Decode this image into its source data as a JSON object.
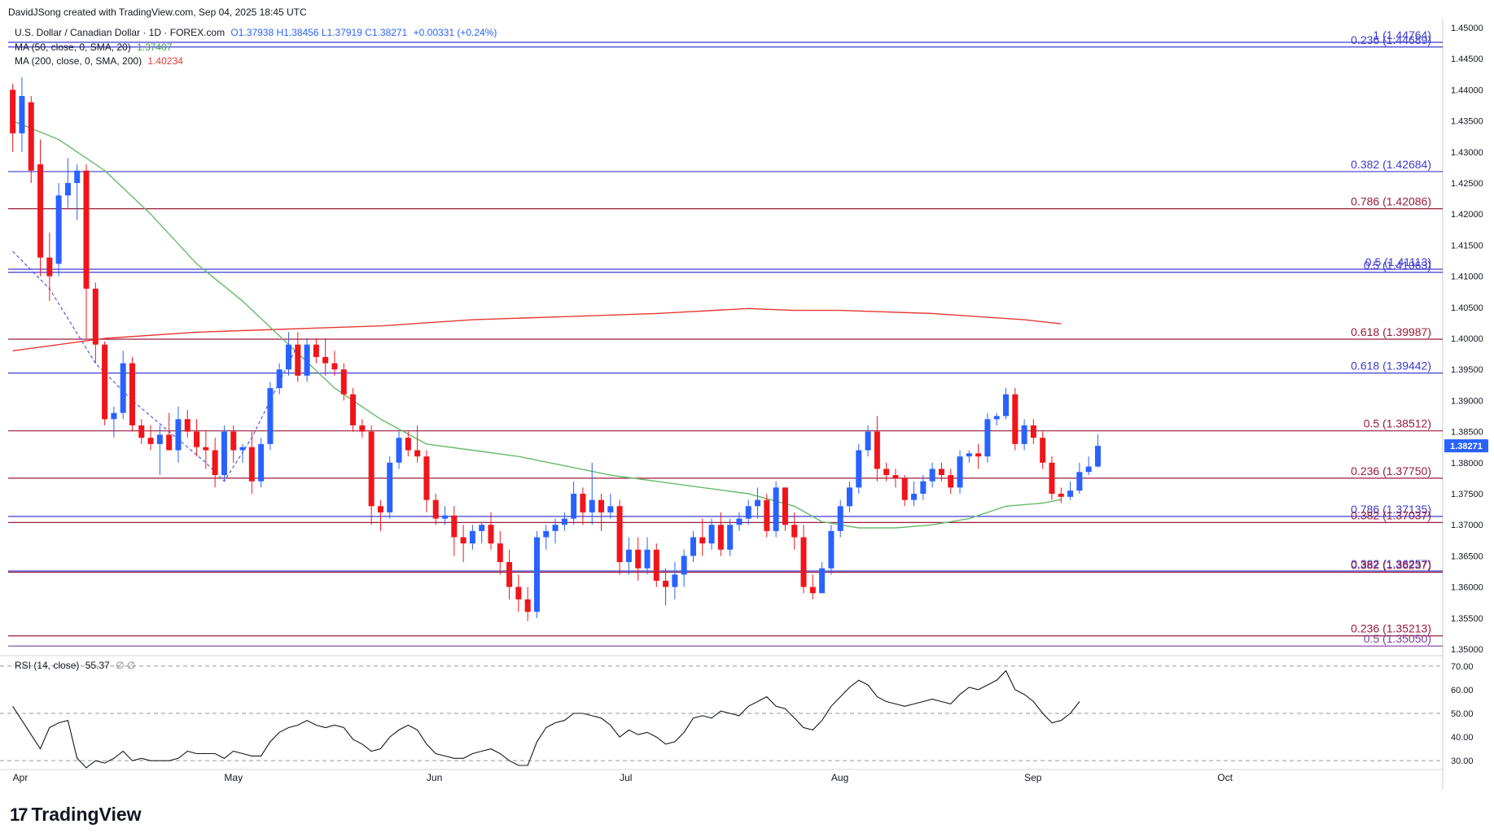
{
  "header": {
    "credit": "DavidJSong created with TradingView.com, Sep 04, 2025 18:45 UTC"
  },
  "legend": {
    "symbol": "U.S. Dollar / Canadian Dollar · 1D · FOREX.com",
    "ohlc": "O1.37938 H1.38456 L1.37919 C1.38271",
    "change": "+0.00331 (+0.24%)",
    "ma50_label": "MA (50, close, 0, SMA, 20)",
    "ma50_value": "1.37407",
    "ma200_label": "MA (200, close, 0, SMA, 200)",
    "ma200_value": "1.40234",
    "rsi_label": "RSI (14, close)",
    "rsi_value": "55.37",
    "rsi_extra": "∅ ∅"
  },
  "branding": {
    "logo_text": "TradingView",
    "logo_mark": "17"
  },
  "colors": {
    "up": "#2962ff",
    "down": "#f0151b",
    "ma50": "#66bb6a",
    "ma200": "#e53935",
    "fib_blue": "#3d3bd0",
    "fib_red": "#9a1b3a",
    "axis_text": "#131722"
  },
  "chart_data": [
    {
      "type": "candlestick",
      "title": "U.S. Dollar / Canadian Dollar · 1D · FOREX.com",
      "ylim": [
        1.35,
        1.45
      ],
      "y_ticks": [
        "1.35000",
        "1.35500",
        "1.36000",
        "1.36500",
        "1.37000",
        "1.37500",
        "1.38000",
        "1.38500",
        "1.39000",
        "1.39500",
        "1.40000",
        "1.40500",
        "1.41000",
        "1.41500",
        "1.42000",
        "1.42500",
        "1.43000",
        "1.43500",
        "1.44000",
        "1.44500",
        "1.45000"
      ],
      "x_month_labels": [
        {
          "label": "Apr",
          "index": 0
        },
        {
          "label": "May",
          "index": 23
        },
        {
          "label": "Jun",
          "index": 45
        },
        {
          "label": "Jul",
          "index": 66
        },
        {
          "label": "Aug",
          "index": 89
        },
        {
          "label": "Sep",
          "index": 110
        },
        {
          "label": "Oct",
          "index": 131
        }
      ],
      "slots": 156,
      "candles": [
        [
          1.44,
          1.441,
          1.43,
          1.433
        ],
        [
          1.433,
          1.442,
          1.43,
          1.439
        ],
        [
          1.438,
          1.439,
          1.425,
          1.427
        ],
        [
          1.428,
          1.432,
          1.41,
          1.413
        ],
        [
          1.413,
          1.417,
          1.406,
          1.41
        ],
        [
          1.412,
          1.425,
          1.41,
          1.423
        ],
        [
          1.423,
          1.429,
          1.421,
          1.425
        ],
        [
          1.425,
          1.428,
          1.419,
          1.427
        ],
        [
          1.427,
          1.428,
          1.4,
          1.408
        ],
        [
          1.408,
          1.409,
          1.396,
          1.399
        ],
        [
          1.399,
          1.3995,
          1.386,
          1.387
        ],
        [
          1.387,
          1.389,
          1.384,
          1.388
        ],
        [
          1.388,
          1.398,
          1.387,
          1.396
        ],
        [
          1.396,
          1.397,
          1.385,
          1.386
        ],
        [
          1.386,
          1.387,
          1.383,
          1.384
        ],
        [
          1.384,
          1.386,
          1.382,
          1.383
        ],
        [
          1.383,
          1.386,
          1.378,
          1.3845
        ],
        [
          1.3845,
          1.388,
          1.382,
          1.382
        ],
        [
          1.382,
          1.389,
          1.38,
          1.387
        ],
        [
          1.387,
          1.3885,
          1.384,
          1.385
        ],
        [
          1.385,
          1.387,
          1.381,
          1.3825
        ],
        [
          1.3825,
          1.385,
          1.379,
          1.382
        ],
        [
          1.382,
          1.384,
          1.376,
          1.378
        ],
        [
          1.378,
          1.386,
          1.377,
          1.385
        ],
        [
          1.385,
          1.386,
          1.38,
          1.382
        ],
        [
          1.382,
          1.383,
          1.38,
          1.3825
        ],
        [
          1.3825,
          1.385,
          1.375,
          1.377
        ],
        [
          1.377,
          1.384,
          1.376,
          1.383
        ],
        [
          1.383,
          1.393,
          1.382,
          1.392
        ],
        [
          1.392,
          1.396,
          1.391,
          1.395
        ],
        [
          1.395,
          1.401,
          1.394,
          1.399
        ],
        [
          1.399,
          1.401,
          1.393,
          1.394
        ],
        [
          1.394,
          1.4,
          1.393,
          1.399
        ],
        [
          1.399,
          1.4,
          1.396,
          1.397
        ],
        [
          1.397,
          1.4,
          1.394,
          1.396
        ],
        [
          1.396,
          1.398,
          1.394,
          1.395
        ],
        [
          1.395,
          1.396,
          1.39,
          1.391
        ],
        [
          1.391,
          1.392,
          1.385,
          1.386
        ],
        [
          1.386,
          1.387,
          1.384,
          1.385
        ],
        [
          1.385,
          1.386,
          1.37,
          1.373
        ],
        [
          1.373,
          1.374,
          1.369,
          1.372
        ],
        [
          1.372,
          1.381,
          1.371,
          1.38
        ],
        [
          1.38,
          1.385,
          1.379,
          1.384
        ],
        [
          1.384,
          1.385,
          1.381,
          1.382
        ],
        [
          1.382,
          1.386,
          1.38,
          1.381
        ],
        [
          1.381,
          1.382,
          1.372,
          1.374
        ],
        [
          1.374,
          1.375,
          1.37,
          1.371
        ],
        [
          1.371,
          1.373,
          1.37,
          1.3715
        ],
        [
          1.3715,
          1.373,
          1.365,
          1.368
        ],
        [
          1.368,
          1.37,
          1.364,
          1.367
        ],
        [
          1.367,
          1.37,
          1.366,
          1.369
        ],
        [
          1.369,
          1.3705,
          1.367,
          1.37
        ],
        [
          1.37,
          1.372,
          1.366,
          1.367
        ],
        [
          1.367,
          1.369,
          1.362,
          1.364
        ],
        [
          1.364,
          1.366,
          1.358,
          1.36
        ],
        [
          1.36,
          1.362,
          1.356,
          1.358
        ],
        [
          1.358,
          1.36,
          1.3545,
          1.356
        ],
        [
          1.356,
          1.369,
          1.355,
          1.368
        ],
        [
          1.368,
          1.37,
          1.366,
          1.369
        ],
        [
          1.369,
          1.371,
          1.367,
          1.37
        ],
        [
          1.37,
          1.372,
          1.369,
          1.371
        ],
        [
          1.371,
          1.377,
          1.37,
          1.375
        ],
        [
          1.375,
          1.376,
          1.37,
          1.372
        ],
        [
          1.372,
          1.38,
          1.37,
          1.374
        ],
        [
          1.374,
          1.375,
          1.369,
          1.372
        ],
        [
          1.372,
          1.375,
          1.371,
          1.373
        ],
        [
          1.373,
          1.374,
          1.362,
          1.364
        ],
        [
          1.364,
          1.368,
          1.362,
          1.366
        ],
        [
          1.366,
          1.368,
          1.361,
          1.363
        ],
        [
          1.363,
          1.368,
          1.362,
          1.366
        ],
        [
          1.366,
          1.367,
          1.36,
          1.361
        ],
        [
          1.361,
          1.363,
          1.357,
          1.36
        ],
        [
          1.36,
          1.364,
          1.358,
          1.362
        ],
        [
          1.362,
          1.366,
          1.36,
          1.365
        ],
        [
          1.365,
          1.369,
          1.364,
          1.368
        ],
        [
          1.368,
          1.371,
          1.365,
          1.367
        ],
        [
          1.367,
          1.371,
          1.366,
          1.37
        ],
        [
          1.37,
          1.372,
          1.365,
          1.366
        ],
        [
          1.366,
          1.371,
          1.365,
          1.37
        ],
        [
          1.37,
          1.372,
          1.369,
          1.371
        ],
        [
          1.371,
          1.374,
          1.37,
          1.373
        ],
        [
          1.373,
          1.376,
          1.371,
          1.374
        ],
        [
          1.374,
          1.375,
          1.368,
          1.369
        ],
        [
          1.369,
          1.377,
          1.368,
          1.376
        ],
        [
          1.376,
          1.376,
          1.369,
          1.37
        ],
        [
          1.37,
          1.372,
          1.366,
          1.368
        ],
        [
          1.368,
          1.37,
          1.359,
          1.36
        ],
        [
          1.36,
          1.362,
          1.358,
          1.359
        ],
        [
          1.359,
          1.364,
          1.359,
          1.363
        ],
        [
          1.363,
          1.37,
          1.362,
          1.369
        ],
        [
          1.369,
          1.374,
          1.368,
          1.373
        ],
        [
          1.373,
          1.377,
          1.372,
          1.376
        ],
        [
          1.376,
          1.383,
          1.375,
          1.382
        ],
        [
          1.382,
          1.386,
          1.381,
          1.385
        ],
        [
          1.385,
          1.3875,
          1.377,
          1.379
        ],
        [
          1.379,
          1.38,
          1.377,
          1.378
        ],
        [
          1.378,
          1.379,
          1.376,
          1.3775
        ],
        [
          1.3775,
          1.378,
          1.373,
          1.374
        ],
        [
          1.374,
          1.377,
          1.373,
          1.375
        ],
        [
          1.375,
          1.378,
          1.374,
          1.377
        ],
        [
          1.377,
          1.38,
          1.376,
          1.379
        ],
        [
          1.379,
          1.38,
          1.377,
          1.378
        ],
        [
          1.378,
          1.379,
          1.375,
          1.376
        ],
        [
          1.376,
          1.382,
          1.375,
          1.381
        ],
        [
          1.381,
          1.382,
          1.38,
          1.3815
        ],
        [
          1.3815,
          1.383,
          1.379,
          1.381
        ],
        [
          1.381,
          1.388,
          1.38,
          1.387
        ],
        [
          1.387,
          1.388,
          1.386,
          1.3875
        ],
        [
          1.3875,
          1.392,
          1.387,
          1.391
        ],
        [
          1.391,
          1.392,
          1.382,
          1.383
        ],
        [
          1.383,
          1.387,
          1.382,
          1.386
        ],
        [
          1.386,
          1.387,
          1.383,
          1.384
        ],
        [
          1.384,
          1.385,
          1.379,
          1.38
        ],
        [
          1.38,
          1.381,
          1.374,
          1.375
        ],
        [
          1.375,
          1.376,
          1.3735,
          1.3745
        ],
        [
          1.3745,
          1.377,
          1.374,
          1.3755
        ],
        [
          1.3755,
          1.38,
          1.375,
          1.3785
        ],
        [
          1.3785,
          1.381,
          1.378,
          1.37938
        ],
        [
          1.37938,
          1.38456,
          1.37919,
          1.38271
        ]
      ],
      "ma50": [
        [
          0,
          1.435
        ],
        [
          5,
          1.432
        ],
        [
          10,
          1.427
        ],
        [
          15,
          1.42
        ],
        [
          20,
          1.412
        ],
        [
          25,
          1.406
        ],
        [
          30,
          1.399
        ],
        [
          35,
          1.392
        ],
        [
          40,
          1.387
        ],
        [
          45,
          1.383
        ],
        [
          50,
          1.382
        ],
        [
          55,
          1.381
        ],
        [
          60,
          1.3795
        ],
        [
          65,
          1.378
        ],
        [
          70,
          1.377
        ],
        [
          75,
          1.376
        ],
        [
          80,
          1.375
        ],
        [
          85,
          1.373
        ],
        [
          88,
          1.3705
        ],
        [
          92,
          1.3695
        ],
        [
          96,
          1.3695
        ],
        [
          100,
          1.37
        ],
        [
          104,
          1.371
        ],
        [
          108,
          1.373
        ],
        [
          112,
          1.3735
        ],
        [
          114,
          1.37407
        ]
      ],
      "ma200": [
        [
          0,
          1.398
        ],
        [
          10,
          1.4
        ],
        [
          20,
          1.401
        ],
        [
          30,
          1.4015
        ],
        [
          40,
          1.402
        ],
        [
          50,
          1.403
        ],
        [
          60,
          1.4035
        ],
        [
          70,
          1.404
        ],
        [
          80,
          1.4048
        ],
        [
          85,
          1.4045
        ],
        [
          90,
          1.4045
        ],
        [
          100,
          1.404
        ],
        [
          110,
          1.403
        ],
        [
          114,
          1.40234
        ]
      ],
      "dashed_path": [
        [
          0,
          1.414
        ],
        [
          4,
          1.408
        ],
        [
          9,
          1.396
        ],
        [
          13,
          1.39
        ],
        [
          17,
          1.385
        ],
        [
          21,
          1.38
        ],
        [
          23,
          1.377
        ],
        [
          26,
          1.384
        ],
        [
          29,
          1.393
        ],
        [
          31,
          1.399
        ]
      ],
      "fib_levels": [
        {
          "label": "1 (1.44764)",
          "value": 1.44764,
          "color": "blue",
          "x_start": 0
        },
        {
          "label": "0.236 (1.44689)",
          "value": 1.44689,
          "color": "blue",
          "x_start": 0
        },
        {
          "label": "0.382 (1.42684)",
          "value": 1.42684,
          "color": "blue",
          "x_start": 0
        },
        {
          "label": "0.786 (1.42086)",
          "value": 1.42086,
          "color": "red",
          "x_start": 0
        },
        {
          "label": "0.5 (1.41113)",
          "value": 1.41113,
          "color": "blue",
          "x_start": 0
        },
        {
          "label": "0.5 (1.41063)",
          "value": 1.41063,
          "color": "blue",
          "x_start": 0
        },
        {
          "label": "0.618 (1.39987)",
          "value": 1.39987,
          "color": "red",
          "x_start": 0
        },
        {
          "label": "0.618 (1.39442)",
          "value": 1.39442,
          "color": "blue",
          "x_start": 0
        },
        {
          "label": "0.5 (1.38512)",
          "value": 1.38512,
          "color": "red",
          "x_start": 0
        },
        {
          "label": "0.236 (1.37750)",
          "value": 1.3775,
          "color": "red",
          "x_start": 0
        },
        {
          "label": "0.786 (1.37135)",
          "value": 1.37135,
          "color": "blue",
          "x_start": 0
        },
        {
          "label": "0.382 (1.37037)",
          "value": 1.37037,
          "color": "red",
          "x_start": 0
        },
        {
          "label": "0.382 (1.36257)",
          "value": 1.36257,
          "color": "blue",
          "x_start": 0
        },
        {
          "label": "0.382 (1.36237)",
          "value": 1.36237,
          "color": "red",
          "x_start": 0
        },
        {
          "label": "0.236 (1.35213)",
          "value": 1.35213,
          "color": "red",
          "x_start": 0
        },
        {
          "label": "0.5 (1.35050)",
          "value": 1.3505,
          "color": "purple",
          "x_start": 0
        }
      ],
      "last_price_label": "1.38271"
    },
    {
      "type": "line",
      "title": "RSI (14, close)",
      "ylim": [
        28,
        72
      ],
      "y_ticks": [
        "30.00",
        "40.00",
        "50.00",
        "60.00",
        "70.00"
      ],
      "bands": [
        70,
        50,
        30
      ],
      "values": [
        53,
        47,
        41,
        35,
        44,
        46,
        47,
        31,
        27,
        30,
        29,
        31,
        34,
        30,
        31,
        30,
        30,
        30,
        31,
        34,
        33,
        33,
        33,
        31,
        34,
        33,
        32,
        32,
        38,
        42,
        44,
        45,
        47,
        45,
        44,
        45,
        44,
        39,
        37,
        34,
        35,
        40,
        43,
        45,
        43,
        37,
        33,
        32,
        31,
        31,
        33,
        34,
        35,
        33,
        30,
        28,
        28,
        38,
        44,
        46,
        47,
        50,
        50,
        49,
        48,
        45,
        40,
        43,
        41,
        42,
        40,
        37,
        38,
        42,
        48,
        49,
        48,
        51,
        50,
        49,
        53,
        55,
        57,
        53,
        52,
        48,
        44,
        43,
        47,
        53,
        57,
        61,
        64,
        62,
        57,
        55,
        54,
        53,
        54,
        55,
        56,
        55,
        54,
        58,
        61,
        60,
        62,
        64,
        68,
        60,
        58,
        55,
        50,
        46,
        47,
        50,
        55
      ]
    }
  ]
}
